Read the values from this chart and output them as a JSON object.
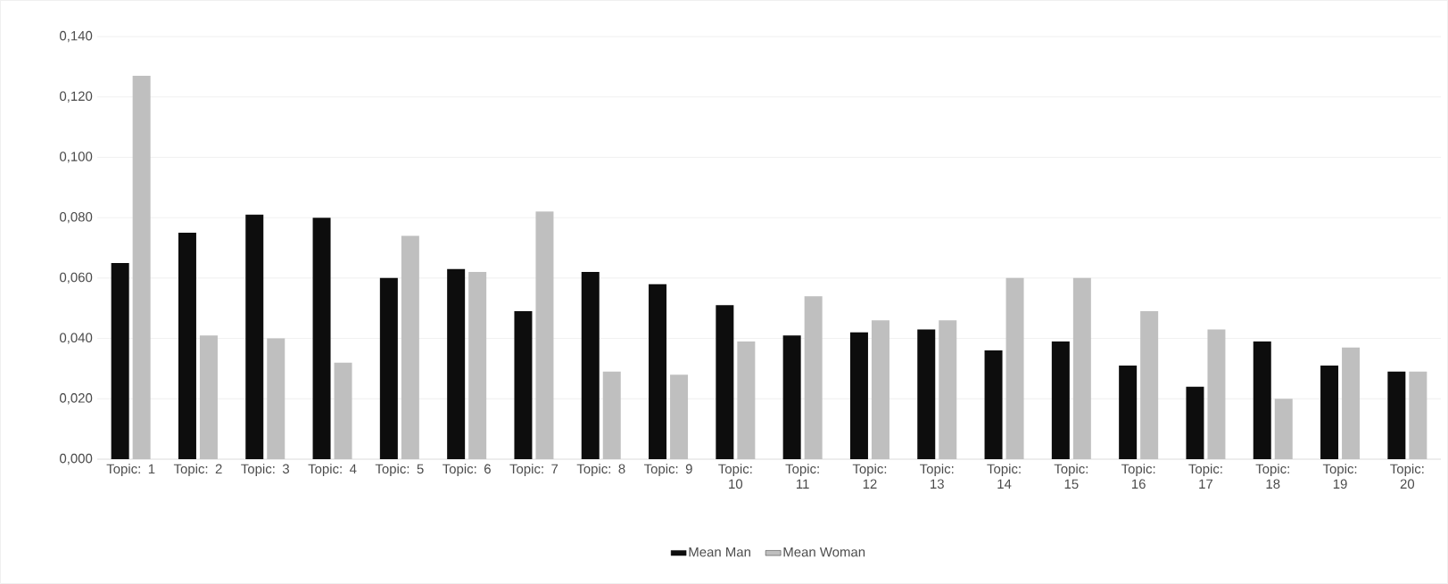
{
  "chart_data": {
    "type": "bar",
    "categories": [
      "Topic: 1",
      "Topic: 2",
      "Topic: 3",
      "Topic: 4",
      "Topic: 5",
      "Topic: 6",
      "Topic: 7",
      "Topic: 8",
      "Topic: 9",
      "Topic: 10",
      "Topic: 11",
      "Topic: 12",
      "Topic: 13",
      "Topic: 14",
      "Topic: 15",
      "Topic: 16",
      "Topic: 17",
      "Topic: 18",
      "Topic: 19",
      "Topic: 20"
    ],
    "series": [
      {
        "name": "Mean Man",
        "color": "#0d0d0d",
        "values": [
          0.065,
          0.075,
          0.081,
          0.08,
          0.06,
          0.063,
          0.049,
          0.062,
          0.058,
          0.051,
          0.041,
          0.042,
          0.043,
          0.036,
          0.039,
          0.031,
          0.024,
          0.039,
          0.031,
          0.029
        ]
      },
      {
        "name": "Mean Woman",
        "color": "#bfbfbf",
        "values": [
          0.127,
          0.041,
          0.04,
          0.032,
          0.074,
          0.062,
          0.082,
          0.029,
          0.028,
          0.039,
          0.054,
          0.046,
          0.046,
          0.06,
          0.06,
          0.049,
          0.043,
          0.02,
          0.037,
          0.029
        ]
      }
    ],
    "ylim": [
      0,
      0.14
    ],
    "yticks": [
      {
        "value": 0,
        "label": "0,000"
      },
      {
        "value": 0.02,
        "label": "0,020"
      },
      {
        "value": 0.04,
        "label": "0,040"
      },
      {
        "value": 0.06,
        "label": "0,060"
      },
      {
        "value": 0.08,
        "label": "0,080"
      },
      {
        "value": 0.1,
        "label": "0,100"
      },
      {
        "value": 0.12,
        "label": "0,120"
      },
      {
        "value": 0.14,
        "label": "0,140"
      }
    ],
    "grid": "y",
    "legend": "bottom"
  }
}
